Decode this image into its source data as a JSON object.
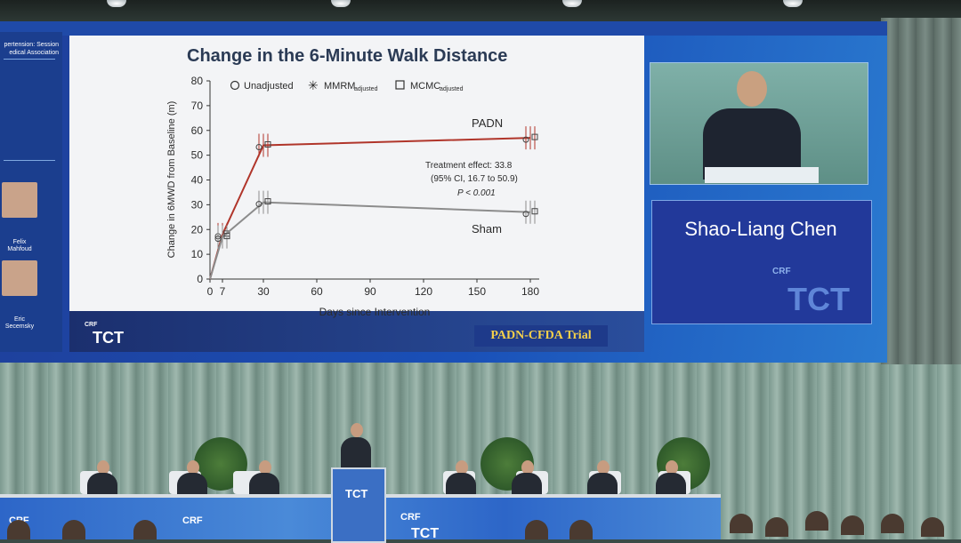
{
  "left_panel": {
    "session_text": "pertension: Session\nedical Association",
    "panelists": [
      {
        "name": "Felix\nMahfoud"
      },
      {
        "name": "Eric\nSecemsky"
      }
    ]
  },
  "slide": {
    "title": "Change in the 6-Minute Walk Distance",
    "legend": {
      "unadjusted": "Unadjusted",
      "mmrm": "MMRM",
      "mmrm_sub": "adjusted",
      "mcmc": "MCMC",
      "mcmc_sub": "adjusted"
    },
    "series_labels": {
      "padn": "PADN",
      "sham": "Sham"
    },
    "annotation": {
      "line1": "Treatment effect: 33.8",
      "line2": "(95% CI, 16.7 to 50.9)",
      "line3": "P < 0.001"
    },
    "trial_label": "PADN-CFDA Trial",
    "logo": {
      "crf": "CRF",
      "tct": "TCT"
    }
  },
  "chart_data": {
    "type": "line",
    "title": "Change in the 6-Minute Walk Distance",
    "xlabel": "Days since Intervention",
    "ylabel": "Change in 6MWD from Baseline (m)",
    "x_ticks": [
      "0",
      "7",
      "30",
      "60",
      "90",
      "120",
      "150",
      "180"
    ],
    "y_ticks": [
      "0",
      "10",
      "20",
      "30",
      "40",
      "50",
      "60",
      "70",
      "80"
    ],
    "xlim": [
      0,
      185
    ],
    "ylim": [
      0,
      80
    ],
    "grid": false,
    "legend_position": "top",
    "x": [
      0,
      7,
      30,
      180
    ],
    "series": [
      {
        "name": "PADN",
        "color": "#b0352a",
        "values": [
          0,
          18,
          54,
          57
        ]
      },
      {
        "name": "Sham",
        "color": "#8c8c8c",
        "values": [
          0,
          17,
          31,
          27
        ]
      }
    ]
  },
  "side": {
    "speaker_name": "Shao-Liang Chen",
    "logo_crf": "CRF",
    "logo_tct": "TCT"
  },
  "stage": {
    "podium_logo": "TCT",
    "banner_crf": "CRF",
    "banner_tct": "TCT"
  },
  "colors": {
    "screen_blue": "#1a50b8",
    "padn_red": "#b0352a",
    "sham_gray": "#8c8c8c",
    "trial_gold": "#f5d04a"
  }
}
